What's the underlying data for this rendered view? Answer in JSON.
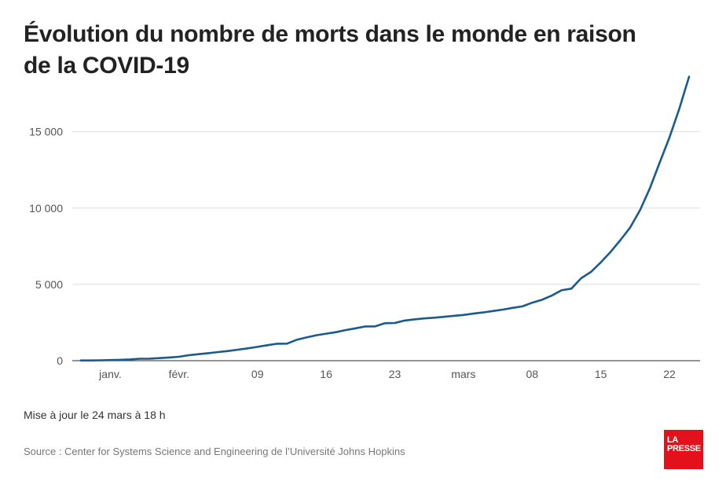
{
  "title": "Évolution du nombre de morts dans le monde en raison de la COVID-19",
  "update_note": "Mise à jour le 24 mars à 18 h",
  "source": "Source : Center for Systems Science and Engineering de l’Université Johns Hopkins",
  "logo": {
    "line1": "LA",
    "line2": "PRESSE"
  },
  "colors": {
    "line": "#1a5a8c",
    "grid": "#dddddd",
    "baseline": "#555555",
    "logo_bg": "#e3111b"
  },
  "chart_data": {
    "type": "line",
    "title": "Évolution du nombre de morts dans le monde en raison de la COVID-19",
    "xlabel": "",
    "ylabel": "",
    "grid": true,
    "legend": "none",
    "ylim": [
      0,
      19000
    ],
    "xlim": [
      "2020-01-22",
      "2020-03-24"
    ],
    "y_ticks": [
      {
        "value": 0,
        "label": "0"
      },
      {
        "value": 5000,
        "label": "5 000"
      },
      {
        "value": 10000,
        "label": "10 000"
      },
      {
        "value": 15000,
        "label": "15 000"
      }
    ],
    "x_ticks": [
      {
        "date": "2020-01-25",
        "label": "janv."
      },
      {
        "date": "2020-02-01",
        "label": "févr."
      },
      {
        "date": "2020-02-09",
        "label": "09"
      },
      {
        "date": "2020-02-16",
        "label": "16"
      },
      {
        "date": "2020-02-23",
        "label": "23"
      },
      {
        "date": "2020-03-01",
        "label": "mars"
      },
      {
        "date": "2020-03-08",
        "label": "08"
      },
      {
        "date": "2020-03-15",
        "label": "15"
      },
      {
        "date": "2020-03-22",
        "label": "22"
      }
    ],
    "series": [
      {
        "x": [
          "2020-01-22",
          "2020-01-23",
          "2020-01-24",
          "2020-01-25",
          "2020-01-26",
          "2020-01-27",
          "2020-01-28",
          "2020-01-29",
          "2020-01-30",
          "2020-01-31",
          "2020-02-01",
          "2020-02-02",
          "2020-02-03",
          "2020-02-04",
          "2020-02-05",
          "2020-02-06",
          "2020-02-07",
          "2020-02-08",
          "2020-02-09",
          "2020-02-10",
          "2020-02-11",
          "2020-02-12",
          "2020-02-13",
          "2020-02-14",
          "2020-02-15",
          "2020-02-16",
          "2020-02-17",
          "2020-02-18",
          "2020-02-19",
          "2020-02-20",
          "2020-02-21",
          "2020-02-22",
          "2020-02-23",
          "2020-02-24",
          "2020-02-25",
          "2020-02-26",
          "2020-02-27",
          "2020-02-28",
          "2020-02-29",
          "2020-03-01",
          "2020-03-02",
          "2020-03-03",
          "2020-03-04",
          "2020-03-05",
          "2020-03-06",
          "2020-03-07",
          "2020-03-08",
          "2020-03-09",
          "2020-03-10",
          "2020-03-11",
          "2020-03-12",
          "2020-03-13",
          "2020-03-14",
          "2020-03-15",
          "2020-03-16",
          "2020-03-17",
          "2020-03-18",
          "2020-03-19",
          "2020-03-20",
          "2020-03-21",
          "2020-03-22",
          "2020-03-23",
          "2020-03-24"
        ],
        "values": [
          17,
          18,
          26,
          42,
          56,
          82,
          131,
          133,
          171,
          213,
          259,
          362,
          426,
          492,
          564,
          634,
          719,
          806,
          906,
          1013,
          1113,
          1118,
          1371,
          1523,
          1666,
          1770,
          1868,
          2007,
          2122,
          2247,
          2251,
          2458,
          2469,
          2629,
          2708,
          2770,
          2814,
          2872,
          2941,
          2996,
          3085,
          3160,
          3254,
          3348,
          3460,
          3558,
          3802,
          3988,
          4262,
          4615,
          4720,
          5404,
          5819,
          6440,
          7126,
          7905,
          8733,
          9867,
          11299,
          12973,
          14623,
          16497,
          18610
        ]
      }
    ]
  }
}
